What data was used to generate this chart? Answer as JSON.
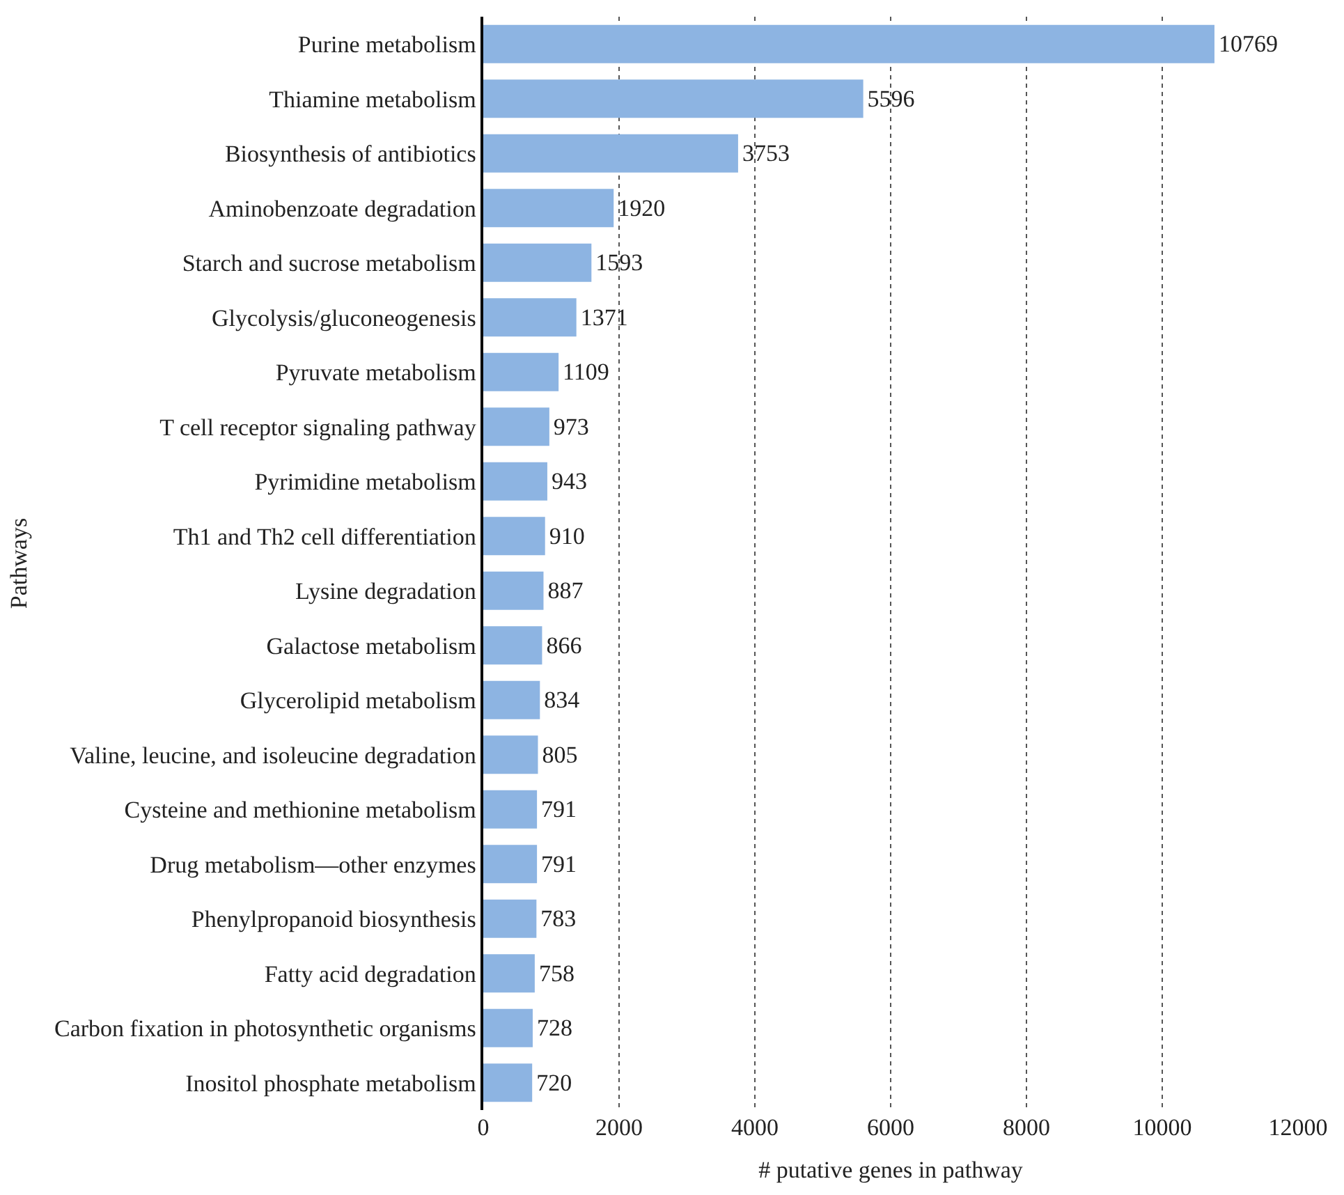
{
  "chart_data": {
    "type": "bar",
    "orientation": "horizontal",
    "xlabel": "# putative genes in pathway",
    "ylabel": "Pathways",
    "categories": [
      "Purine metabolism",
      "Thiamine metabolism",
      "Biosynthesis of antibiotics",
      "Aminobenzoate degradation",
      "Starch and sucrose metabolism",
      "Glycolysis/gluconeogenesis",
      "Pyruvate metabolism",
      "T cell receptor signaling pathway",
      "Pyrimidine metabolism",
      "Th1 and Th2 cell differentiation",
      "Lysine degradation",
      "Galactose metabolism",
      "Glycerolipid metabolism",
      "Valine, leucine, and isoleucine degradation",
      "Cysteine and methionine metabolism",
      "Drug metabolism—other enzymes",
      "Phenylpropanoid biosynthesis",
      "Fatty acid degradation",
      "Carbon fixation in photosynthetic organisms",
      "Inositol phosphate metabolism"
    ],
    "values": [
      10769,
      5596,
      3753,
      1920,
      1593,
      1371,
      1109,
      973,
      943,
      910,
      887,
      866,
      834,
      805,
      791,
      791,
      783,
      758,
      728,
      720
    ],
    "color": "#8db4e2",
    "data_labels": true,
    "grid": "x",
    "legend": false,
    "xlim": [
      0,
      12000
    ],
    "xticks": [
      0,
      2000,
      4000,
      6000,
      8000,
      10000,
      12000
    ]
  }
}
